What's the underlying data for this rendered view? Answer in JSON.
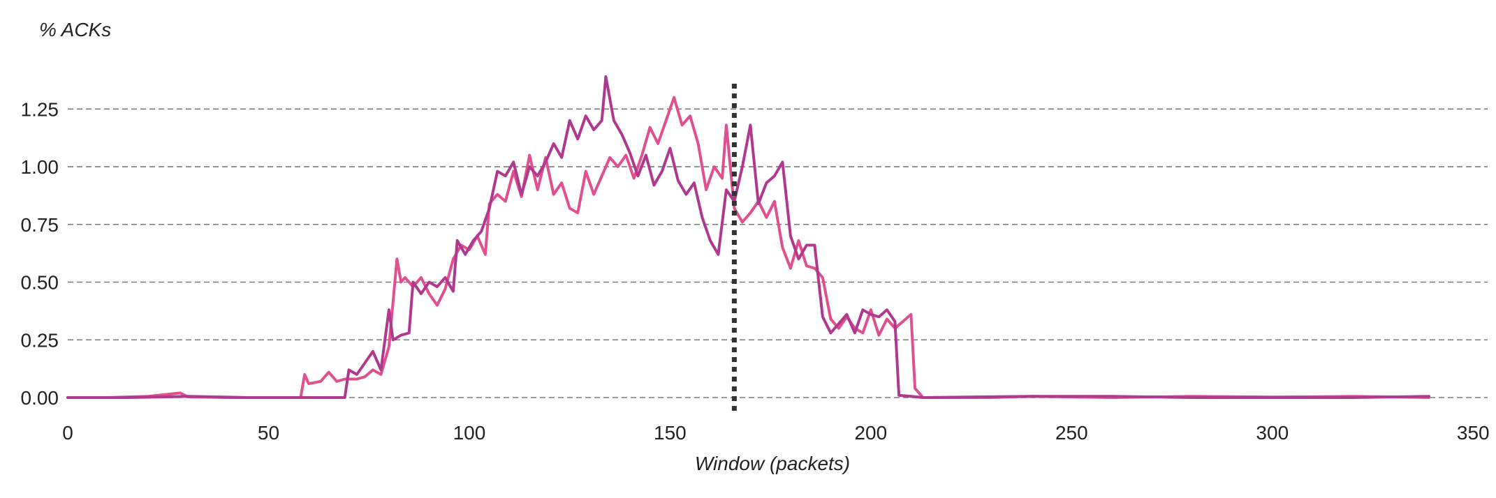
{
  "chart_data": {
    "type": "line",
    "title": "",
    "xlabel": "Window (packets)",
    "ylabel": "% ACKs",
    "xlim": [
      0,
      355
    ],
    "ylim": [
      0,
      1.42
    ],
    "x_ticks": [
      0,
      50,
      100,
      150,
      200,
      250,
      300,
      350
    ],
    "x_tick_labels": [
      "0",
      "50",
      "100",
      "150",
      "200",
      "250",
      "300",
      "350"
    ],
    "y_ticks": [
      0,
      0.25,
      0.5,
      0.75,
      1.0,
      1.25
    ],
    "y_tick_labels": [
      "0.00",
      "0.25",
      "0.50",
      "0.75",
      "1.00",
      "1.25"
    ],
    "grid": "horizontal dashed",
    "vertical_marker": {
      "x": 166,
      "style": "dotted",
      "color": "#333333"
    },
    "series": [
      {
        "color": "#e0508e",
        "points": [
          [
            0,
            0
          ],
          [
            10,
            0
          ],
          [
            20,
            0.005
          ],
          [
            28,
            0.02
          ],
          [
            30,
            0.003
          ],
          [
            40,
            0
          ],
          [
            50,
            0
          ],
          [
            58,
            0
          ],
          [
            59,
            0.1
          ],
          [
            60,
            0.06
          ],
          [
            63,
            0.07
          ],
          [
            65,
            0.11
          ],
          [
            67,
            0.07
          ],
          [
            69,
            0.08
          ],
          [
            72,
            0.08
          ],
          [
            74,
            0.09
          ],
          [
            76,
            0.12
          ],
          [
            78,
            0.1
          ],
          [
            80,
            0.22
          ],
          [
            82,
            0.6
          ],
          [
            83,
            0.5
          ],
          [
            84,
            0.52
          ],
          [
            86,
            0.48
          ],
          [
            88,
            0.52
          ],
          [
            90,
            0.45
          ],
          [
            92,
            0.4
          ],
          [
            94,
            0.47
          ],
          [
            96,
            0.6
          ],
          [
            98,
            0.66
          ],
          [
            100,
            0.64
          ],
          [
            102,
            0.7
          ],
          [
            104,
            0.62
          ],
          [
            105,
            0.84
          ],
          [
            107,
            0.88
          ],
          [
            109,
            0.85
          ],
          [
            111,
            0.98
          ],
          [
            113,
            0.87
          ],
          [
            115,
            1.05
          ],
          [
            117,
            0.9
          ],
          [
            119,
            1.04
          ],
          [
            121,
            0.88
          ],
          [
            123,
            0.93
          ],
          [
            125,
            0.82
          ],
          [
            127,
            0.8
          ],
          [
            129,
            0.98
          ],
          [
            131,
            0.88
          ],
          [
            133,
            0.96
          ],
          [
            135,
            1.04
          ],
          [
            137,
            1.0
          ],
          [
            139,
            1.05
          ],
          [
            141,
            0.95
          ],
          [
            143,
            1.05
          ],
          [
            145,
            1.17
          ],
          [
            147,
            1.1
          ],
          [
            149,
            1.2
          ],
          [
            151,
            1.3
          ],
          [
            153,
            1.18
          ],
          [
            155,
            1.22
          ],
          [
            157,
            1.1
          ],
          [
            159,
            0.9
          ],
          [
            161,
            1.0
          ],
          [
            163,
            0.95
          ],
          [
            164,
            1.18
          ],
          [
            166,
            0.82
          ],
          [
            168,
            0.76
          ],
          [
            170,
            0.8
          ],
          [
            172,
            0.85
          ],
          [
            174,
            0.78
          ],
          [
            176,
            0.85
          ],
          [
            178,
            0.65
          ],
          [
            180,
            0.56
          ],
          [
            182,
            0.68
          ],
          [
            184,
            0.57
          ],
          [
            186,
            0.56
          ],
          [
            188,
            0.52
          ],
          [
            190,
            0.34
          ],
          [
            192,
            0.3
          ],
          [
            194,
            0.35
          ],
          [
            196,
            0.3
          ],
          [
            198,
            0.28
          ],
          [
            200,
            0.38
          ],
          [
            202,
            0.27
          ],
          [
            204,
            0.34
          ],
          [
            206,
            0.3
          ],
          [
            208,
            0.33
          ],
          [
            210,
            0.36
          ],
          [
            211,
            0.04
          ],
          [
            213,
            0
          ],
          [
            230,
            0
          ],
          [
            240,
            0.005
          ],
          [
            260,
            0
          ],
          [
            280,
            0.005
          ],
          [
            300,
            0.002
          ],
          [
            320,
            0.005
          ],
          [
            339,
            0
          ]
        ]
      },
      {
        "color": "#b0388e",
        "points": [
          [
            0,
            0
          ],
          [
            15,
            0
          ],
          [
            30,
            0.005
          ],
          [
            45,
            0
          ],
          [
            60,
            0
          ],
          [
            69,
            0
          ],
          [
            70,
            0.12
          ],
          [
            72,
            0.1
          ],
          [
            74,
            0.15
          ],
          [
            76,
            0.2
          ],
          [
            78,
            0.12
          ],
          [
            80,
            0.38
          ],
          [
            81,
            0.25
          ],
          [
            83,
            0.27
          ],
          [
            85,
            0.28
          ],
          [
            86,
            0.5
          ],
          [
            88,
            0.45
          ],
          [
            90,
            0.5
          ],
          [
            92,
            0.48
          ],
          [
            94,
            0.52
          ],
          [
            96,
            0.46
          ],
          [
            97,
            0.68
          ],
          [
            99,
            0.62
          ],
          [
            101,
            0.68
          ],
          [
            103,
            0.72
          ],
          [
            105,
            0.82
          ],
          [
            107,
            0.98
          ],
          [
            109,
            0.96
          ],
          [
            111,
            1.02
          ],
          [
            113,
            0.88
          ],
          [
            115,
            1.0
          ],
          [
            117,
            0.96
          ],
          [
            119,
            1.02
          ],
          [
            121,
            1.1
          ],
          [
            123,
            1.04
          ],
          [
            125,
            1.2
          ],
          [
            127,
            1.12
          ],
          [
            129,
            1.22
          ],
          [
            131,
            1.16
          ],
          [
            133,
            1.2
          ],
          [
            134,
            1.39
          ],
          [
            136,
            1.2
          ],
          [
            138,
            1.14
          ],
          [
            140,
            1.06
          ],
          [
            142,
            0.96
          ],
          [
            144,
            1.05
          ],
          [
            146,
            0.92
          ],
          [
            148,
            0.98
          ],
          [
            150,
            1.08
          ],
          [
            152,
            0.94
          ],
          [
            154,
            0.88
          ],
          [
            156,
            0.93
          ],
          [
            158,
            0.78
          ],
          [
            160,
            0.68
          ],
          [
            162,
            0.62
          ],
          [
            164,
            0.9
          ],
          [
            166,
            0.85
          ],
          [
            168,
            1.0
          ],
          [
            170,
            1.18
          ],
          [
            172,
            0.84
          ],
          [
            174,
            0.93
          ],
          [
            176,
            0.96
          ],
          [
            178,
            1.02
          ],
          [
            180,
            0.7
          ],
          [
            182,
            0.6
          ],
          [
            184,
            0.66
          ],
          [
            186,
            0.66
          ],
          [
            188,
            0.35
          ],
          [
            190,
            0.28
          ],
          [
            192,
            0.32
          ],
          [
            194,
            0.36
          ],
          [
            196,
            0.28
          ],
          [
            198,
            0.38
          ],
          [
            200,
            0.36
          ],
          [
            202,
            0.35
          ],
          [
            204,
            0.38
          ],
          [
            206,
            0.33
          ],
          [
            207,
            0.01
          ],
          [
            210,
            0.005
          ],
          [
            213,
            0
          ],
          [
            240,
            0.005
          ],
          [
            260,
            0.005
          ],
          [
            280,
            0
          ],
          [
            300,
            0
          ],
          [
            320,
            0
          ],
          [
            339,
            0.005
          ]
        ]
      }
    ]
  }
}
